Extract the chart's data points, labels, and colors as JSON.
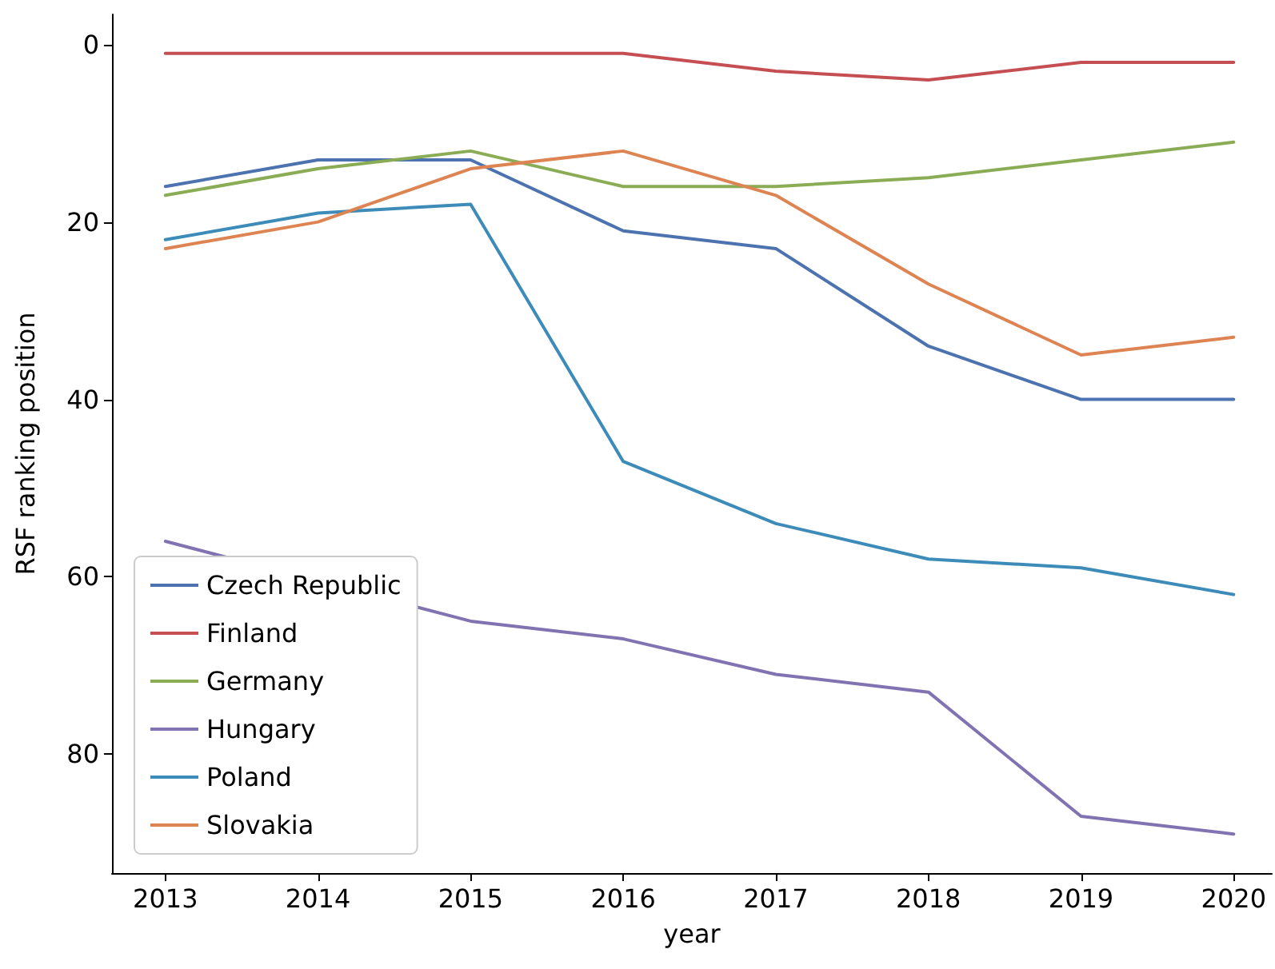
{
  "chart_data": {
    "type": "line",
    "xlabel": "year",
    "ylabel": "RSF ranking position",
    "x": [
      2013,
      2014,
      2015,
      2016,
      2017,
      2018,
      2019,
      2020
    ],
    "xlim": [
      2012.65,
      2020.25
    ],
    "xticks": [
      2013,
      2014,
      2015,
      2016,
      2017,
      2018,
      2019,
      2020
    ],
    "ylim": [
      93.4,
      -3.4
    ],
    "yticks": [
      0,
      20,
      40,
      60,
      80
    ],
    "grid": false,
    "legend": "bottom left",
    "marker": "none",
    "line_style": "solid",
    "series": [
      {
        "name": "Czech Republic",
        "color": "#4c72b0",
        "values": [
          16,
          13,
          13,
          21,
          23,
          34,
          40,
          40
        ]
      },
      {
        "name": "Finland",
        "color": "#c44e52",
        "values": [
          1,
          1,
          1,
          1,
          3,
          4,
          2,
          2
        ]
      },
      {
        "name": "Germany",
        "color": "#8aac55",
        "values": [
          17,
          14,
          12,
          16,
          16,
          15,
          13,
          11
        ]
      },
      {
        "name": "Hungary",
        "color": "#8172b2",
        "values": [
          56,
          null,
          65,
          67,
          71,
          73,
          87,
          89
        ]
      },
      {
        "name": "Poland",
        "color": "#3d8bb8",
        "values": [
          22,
          19,
          18,
          47,
          54,
          58,
          59,
          62
        ]
      },
      {
        "name": "Slovakia",
        "color": "#dd8452",
        "values": [
          23,
          20,
          14,
          12,
          17,
          27,
          35,
          33
        ]
      }
    ]
  }
}
